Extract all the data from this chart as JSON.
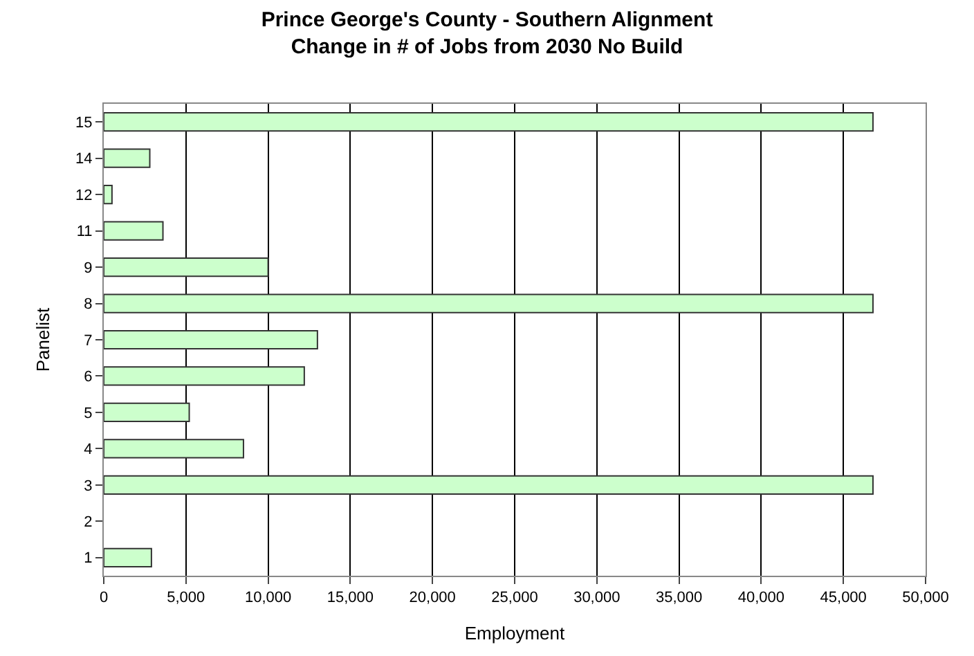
{
  "chart_data": {
    "type": "bar",
    "orientation": "horizontal",
    "title": "Prince George's County - Southern Alignment\nChange in # of Jobs from 2030 No Build",
    "xlabel": "Employment",
    "ylabel": "Panelist",
    "categories": [
      "15",
      "14",
      "12",
      "11",
      "9",
      "8",
      "7",
      "6",
      "5",
      "4",
      "3",
      "2",
      "1"
    ],
    "values": [
      46800,
      2800,
      500,
      3600,
      10000,
      46800,
      13000,
      12200,
      5200,
      8500,
      46800,
      null,
      2900
    ],
    "color": "#ccffcc",
    "xlim": [
      0,
      50000
    ],
    "xticks": [
      {
        "value": 0,
        "label": "0"
      },
      {
        "value": 5000,
        "label": "5,000"
      },
      {
        "value": 10000,
        "label": "10,000"
      },
      {
        "value": 15000,
        "label": "15,000"
      },
      {
        "value": 20000,
        "label": "20,000"
      },
      {
        "value": 25000,
        "label": "25,000"
      },
      {
        "value": 30000,
        "label": "30,000"
      },
      {
        "value": 35000,
        "label": "35,000"
      },
      {
        "value": 40000,
        "label": "40,000"
      },
      {
        "value": 45000,
        "label": "45,000"
      },
      {
        "value": 50000,
        "label": "50,000"
      }
    ],
    "grid": "x"
  }
}
